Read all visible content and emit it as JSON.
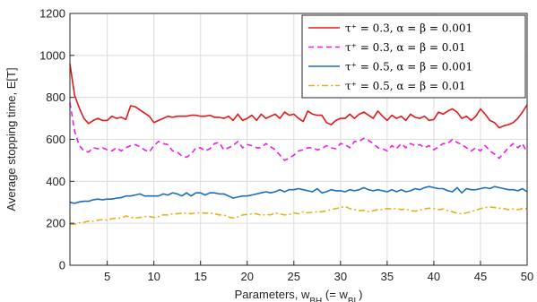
{
  "chart_data": {
    "type": "line",
    "title": "",
    "xlabel": "Parameters, w",
    "xlabel_sub1": "BH",
    "xlabel_mid": " (= w",
    "xlabel_sub2": "BL",
    "xlabel_end": ")",
    "ylabel": "Average stopping time, E[T]",
    "xlim": [
      1,
      50
    ],
    "ylim": [
      0,
      1200
    ],
    "xticks": [
      5,
      10,
      15,
      20,
      25,
      30,
      35,
      40,
      45,
      50
    ],
    "xtick_labels": [
      "5",
      "10",
      "15",
      "20",
      "25",
      "30",
      "35",
      "40",
      "45",
      "50"
    ],
    "yticks": [
      0,
      200,
      400,
      600,
      800,
      1000,
      1200
    ],
    "ytick_labels": [
      "0",
      "200",
      "400",
      "600",
      "800",
      "1000",
      "1200"
    ],
    "grid": true,
    "legend_position": "top-right",
    "x": [
      1,
      1.5,
      2,
      2.5,
      3,
      3.5,
      4,
      4.5,
      5,
      5.5,
      6,
      6.5,
      7,
      7.5,
      8,
      8.5,
      9,
      9.5,
      10,
      10.5,
      11,
      11.5,
      12,
      12.5,
      13,
      13.5,
      14,
      14.5,
      15,
      15.5,
      16,
      16.5,
      17,
      17.5,
      18,
      18.5,
      19,
      19.5,
      20,
      20.5,
      21,
      21.5,
      22,
      22.5,
      23,
      23.5,
      24,
      24.5,
      25,
      25.5,
      26,
      26.5,
      27,
      27.5,
      28,
      28.5,
      29,
      29.5,
      30,
      30.5,
      31,
      31.5,
      32,
      32.5,
      33,
      33.5,
      34,
      34.5,
      35,
      35.5,
      36,
      36.5,
      37,
      37.5,
      38,
      38.5,
      39,
      39.5,
      40,
      40.5,
      41,
      41.5,
      42,
      42.5,
      43,
      43.5,
      44,
      44.5,
      45,
      45.5,
      46,
      46.5,
      47,
      47.5,
      48,
      48.5,
      49,
      49.5,
      50
    ],
    "series": [
      {
        "name": "τ⁺ = 0.3, α = β = 0.001",
        "color": "#e3191c",
        "dash": "solid",
        "values": [
          960,
          810,
          750,
          700,
          675,
          690,
          700,
          690,
          690,
          710,
          700,
          705,
          695,
          760,
          755,
          740,
          725,
          710,
          680,
          690,
          700,
          710,
          705,
          710,
          710,
          710,
          715,
          715,
          710,
          710,
          715,
          705,
          705,
          700,
          710,
          690,
          720,
          690,
          700,
          715,
          690,
          720,
          700,
          710,
          720,
          700,
          730,
          715,
          720,
          700,
          685,
          735,
          720,
          715,
          715,
          680,
          670,
          690,
          700,
          700,
          720,
          700,
          720,
          730,
          715,
          700,
          735,
          710,
          690,
          715,
          700,
          710,
          690,
          720,
          705,
          700,
          710,
          690,
          695,
          730,
          720,
          735,
          745,
          730,
          700,
          710,
          690,
          710,
          745,
          720,
          690,
          680,
          655,
          665,
          670,
          680,
          700,
          730,
          765
        ]
      },
      {
        "name": "τ⁺ = 0.3, α = β = 0.01",
        "color": "#f01ce6",
        "dash": "dashed",
        "values": [
          775,
          640,
          570,
          545,
          540,
          560,
          555,
          560,
          550,
          545,
          560,
          545,
          560,
          570,
          575,
          565,
          550,
          540,
          570,
          590,
          580,
          575,
          545,
          540,
          520,
          515,
          530,
          560,
          560,
          545,
          555,
          580,
          585,
          550,
          560,
          570,
          590,
          560,
          575,
          570,
          560,
          560,
          580,
          565,
          550,
          525,
          500,
          510,
          525,
          545,
          550,
          560,
          560,
          550,
          555,
          570,
          560,
          555,
          580,
          575,
          560,
          590,
          590,
          605,
          595,
          580,
          560,
          555,
          545,
          570,
          555,
          580,
          560,
          580,
          570,
          575,
          560,
          570,
          550,
          565,
          580,
          580,
          600,
          585,
          575,
          560,
          545,
          560,
          545,
          570,
          545,
          530,
          510,
          535,
          560,
          580,
          560,
          580,
          535
        ]
      },
      {
        "name": "τ⁺ = 0.5, α = β = 0.001",
        "color": "#1a6fb8",
        "dash": "solid",
        "values": [
          300,
          295,
          302,
          305,
          305,
          312,
          315,
          312,
          315,
          315,
          320,
          322,
          330,
          330,
          335,
          340,
          330,
          330,
          330,
          330,
          340,
          335,
          345,
          340,
          330,
          345,
          330,
          345,
          345,
          335,
          345,
          345,
          340,
          340,
          330,
          320,
          325,
          330,
          330,
          335,
          340,
          345,
          350,
          345,
          350,
          360,
          350,
          360,
          360,
          365,
          360,
          355,
          350,
          365,
          345,
          350,
          360,
          355,
          355,
          350,
          360,
          355,
          360,
          370,
          360,
          355,
          360,
          355,
          350,
          360,
          350,
          360,
          350,
          355,
          365,
          360,
          370,
          375,
          370,
          365,
          365,
          355,
          350,
          370,
          345,
          365,
          360,
          360,
          365,
          370,
          365,
          375,
          370,
          365,
          360,
          360,
          355,
          365,
          350
        ]
      },
      {
        "name": "τ⁺ = 0.5, α = β = 0.01",
        "color": "#e3b21b",
        "dash": "dashdot",
        "values": [
          195,
          195,
          202,
          205,
          210,
          210,
          215,
          218,
          215,
          222,
          225,
          225,
          235,
          228,
          225,
          228,
          232,
          232,
          228,
          232,
          240,
          240,
          245,
          245,
          248,
          248,
          245,
          250,
          250,
          248,
          250,
          245,
          240,
          240,
          230,
          225,
          230,
          240,
          242,
          245,
          245,
          238,
          242,
          240,
          250,
          245,
          240,
          242,
          250,
          245,
          255,
          250,
          252,
          255,
          255,
          260,
          265,
          270,
          275,
          280,
          270,
          265,
          260,
          262,
          255,
          260,
          265,
          265,
          270,
          268,
          270,
          265,
          268,
          260,
          258,
          262,
          268,
          272,
          270,
          265,
          268,
          260,
          255,
          248,
          245,
          250,
          255,
          262,
          270,
          275,
          278,
          275,
          272,
          270,
          265,
          268,
          265,
          270,
          270
        ]
      }
    ]
  }
}
